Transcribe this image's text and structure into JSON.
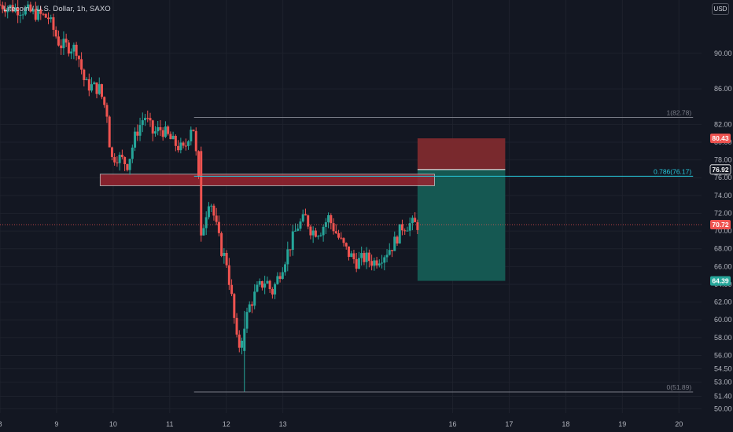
{
  "legend": "Litecoin / U.S. Dollar, 1h, SAXO",
  "currency": "USD",
  "chart_data": {
    "type": "candlestick",
    "xlim": [
      8.0,
      20.4
    ],
    "ylim": [
      49.5,
      96.0
    ],
    "y_ticks": [
      50.0,
      51.4,
      53.0,
      54.5,
      56.0,
      58.0,
      60.0,
      62.0,
      64.0,
      66.0,
      68.0,
      70.0,
      72.0,
      74.0,
      76.0,
      78.0,
      80.0,
      82.0,
      86.0,
      90.0
    ],
    "x_ticks": [
      {
        "x": 8,
        "label": "8"
      },
      {
        "x": 9,
        "label": "9"
      },
      {
        "x": 10,
        "label": "10"
      },
      {
        "x": 11,
        "label": "11"
      },
      {
        "x": 12,
        "label": "12"
      },
      {
        "x": 13,
        "label": "13"
      },
      {
        "x": 16,
        "label": "16"
      },
      {
        "x": 17,
        "label": "17"
      },
      {
        "x": 18,
        "label": "18"
      },
      {
        "x": 19,
        "label": "19"
      },
      {
        "x": 20,
        "label": "20"
      }
    ],
    "price_keypoints": [
      [
        8.0,
        95.5
      ],
      [
        8.5,
        94.8
      ],
      [
        8.9,
        94.0
      ],
      [
        9.1,
        91.0
      ],
      [
        9.4,
        90.5
      ],
      [
        9.55,
        86.5
      ],
      [
        9.8,
        86.0
      ],
      [
        9.95,
        83.0
      ],
      [
        10.0,
        78.0
      ],
      [
        10.1,
        78.5
      ],
      [
        10.3,
        77.5
      ],
      [
        10.45,
        81.0
      ],
      [
        10.6,
        83.0
      ],
      [
        10.75,
        81.0
      ],
      [
        10.9,
        81.5
      ],
      [
        11.1,
        80.0
      ],
      [
        11.3,
        79.0
      ],
      [
        11.45,
        82.5
      ],
      [
        11.55,
        76.0
      ],
      [
        11.62,
        70.0
      ],
      [
        11.75,
        74.0
      ],
      [
        11.95,
        68.0
      ],
      [
        12.05,
        66.5
      ],
      [
        12.15,
        62.0
      ],
      [
        12.25,
        56.5
      ],
      [
        12.35,
        59.0
      ],
      [
        12.45,
        61.5
      ],
      [
        12.6,
        63.5
      ],
      [
        12.75,
        64.5
      ],
      [
        12.85,
        63.0
      ],
      [
        13.0,
        65.5
      ],
      [
        13.15,
        68.0
      ],
      [
        13.3,
        70.5
      ],
      [
        13.45,
        71.5
      ],
      [
        13.55,
        70.0
      ],
      [
        13.7,
        70.0
      ],
      [
        13.85,
        71.5
      ],
      [
        14.05,
        69.0
      ],
      [
        14.2,
        67.5
      ],
      [
        14.35,
        66.5
      ],
      [
        14.5,
        67.0
      ],
      [
        14.65,
        66.5
      ],
      [
        14.85,
        67.5
      ],
      [
        15.0,
        68.5
      ],
      [
        15.15,
        70.5
      ],
      [
        15.3,
        70.8
      ],
      [
        15.4,
        70.7
      ]
    ],
    "events": [
      {
        "x": 11.54,
        "o": 79.0,
        "c": 69.5,
        "h": 79.5,
        "l": 68.8
      },
      {
        "x": 12.3,
        "o": 56.5,
        "c": 59.0,
        "h": 61.0,
        "l": 51.89
      }
    ],
    "last_price": 70.72,
    "fibonacci": {
      "levels": [
        {
          "label": "1(82.78)",
          "value": 82.78
        },
        {
          "label": "0.786(76.17)",
          "value": 76.17
        },
        {
          "label": "0(51.89)",
          "value": 51.89
        }
      ],
      "x_start": 11.43,
      "x_end": 20.25
    },
    "zone": {
      "x0": 9.77,
      "x1": 15.68,
      "y0": 75.1,
      "y1": 76.4
    },
    "position": {
      "x0": 15.38,
      "x1": 16.93,
      "stop": 80.43,
      "entry": 76.92,
      "target": 64.39
    },
    "price_labels": [
      {
        "value": "80.43",
        "role": "stop"
      },
      {
        "value": "76.92",
        "role": "entry"
      },
      {
        "value": "70.72",
        "role": "last"
      },
      {
        "value": "64.39",
        "role": "target"
      }
    ],
    "colors": {
      "up": "#26a69a",
      "down": "#ef5350",
      "stop_zone": "#7e2a2e",
      "target_zone": "#155c55",
      "fib": "#787b86",
      "fib_786": "#26c6da",
      "zone_fill": "#9b2430"
    }
  }
}
